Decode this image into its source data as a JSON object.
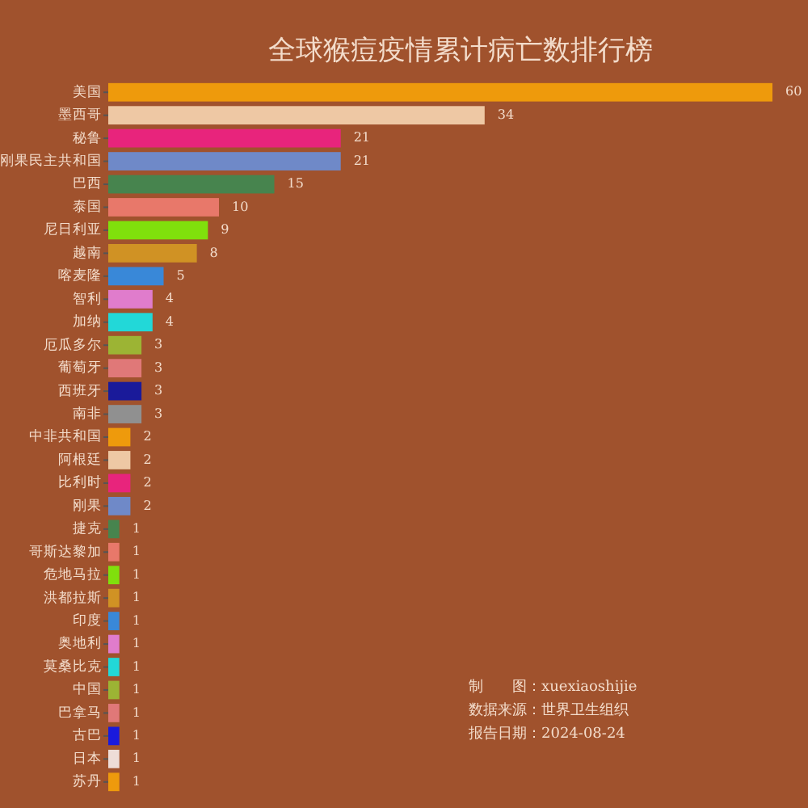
{
  "chart_data": {
    "type": "bar",
    "orientation": "horizontal",
    "title": "全球猴痘疫情累计病亡数排行榜",
    "categories": [
      "美国",
      "墨西哥",
      "秘鲁",
      "刚果民主共和国",
      "巴西",
      "泰国",
      "尼日利亚",
      "越南",
      "喀麦隆",
      "智利",
      "加纳",
      "厄瓜多尔",
      "葡萄牙",
      "西班牙",
      "南非",
      "中非共和国",
      "阿根廷",
      "比利时",
      "刚果",
      "捷克",
      "哥斯达黎加",
      "危地马拉",
      "洪都拉斯",
      "印度",
      "奥地利",
      "莫桑比克",
      "中国",
      "巴拿马",
      "古巴",
      "日本",
      "苏丹"
    ],
    "values": [
      60,
      34,
      21,
      21,
      15,
      10,
      9,
      8,
      5,
      4,
      4,
      3,
      3,
      3,
      3,
      2,
      2,
      2,
      2,
      1,
      1,
      1,
      1,
      1,
      1,
      1,
      1,
      1,
      1,
      1,
      1
    ],
    "colors": [
      "#ee9a0c",
      "#eec8a4",
      "#e8247c",
      "#6f89c8",
      "#47844e",
      "#e8786a",
      "#80e00c",
      "#d09224",
      "#3988d8",
      "#e07ccc",
      "#22d8d8",
      "#9cb434",
      "#e07878",
      "#1a1a9a",
      "#909090",
      "#ee9a0c",
      "#eec8a4",
      "#e8247c",
      "#6f89c8",
      "#47844e",
      "#e8786a",
      "#80e00c",
      "#d09224",
      "#3988d8",
      "#e07ccc",
      "#22d8d8",
      "#9cb434",
      "#e07878",
      "#1a1add",
      "#eeddd8",
      "#ee9a0c"
    ],
    "data_labels": true,
    "annotations": [
      "制　　图：xuexiaoshijie",
      "数据来源：世界卫生组织",
      "报告日期：2024-08-24"
    ]
  }
}
